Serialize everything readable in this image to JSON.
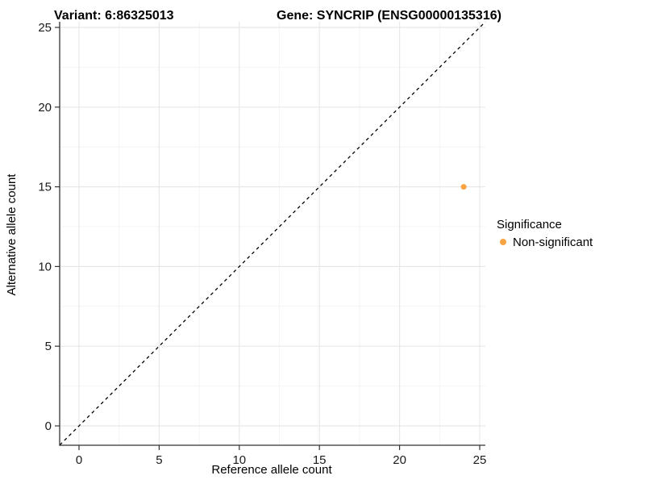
{
  "header": {
    "variant_title": "Variant: 6:86325013",
    "gene_title": "Gene: SYNCRIP (ENSG00000135316)"
  },
  "chart_data": {
    "type": "scatter",
    "title_left": "Variant: 6:86325013",
    "title_right": "Gene: SYNCRIP (ENSG00000135316)",
    "xlabel": "Reference allele count",
    "ylabel": "Alternative allele count",
    "x_ticks": [
      0,
      5,
      10,
      15,
      20,
      25
    ],
    "y_ticks": [
      0,
      5,
      10,
      15,
      20,
      25
    ],
    "xlim": [
      -1.2,
      25.35
    ],
    "ylim": [
      -1.2,
      25.35
    ],
    "grid": "major+minor",
    "points": [
      {
        "x": 24,
        "y": 15,
        "series": "Non-significant"
      }
    ],
    "identity_line": {
      "style": "dashed",
      "from": [
        -1.2,
        -1.2
      ],
      "to": [
        25.35,
        25.35
      ],
      "color": "#000000"
    },
    "legend": {
      "title": "Significance",
      "position": "right",
      "items": [
        {
          "label": "Non-significant",
          "color": "#F9A442"
        }
      ]
    },
    "colors": {
      "point": "#F9A442",
      "axis_line": "#333333",
      "grid_major": "#E8E8E8",
      "grid_minor": "#F4F4F4",
      "background": "#FFFFFF"
    }
  }
}
